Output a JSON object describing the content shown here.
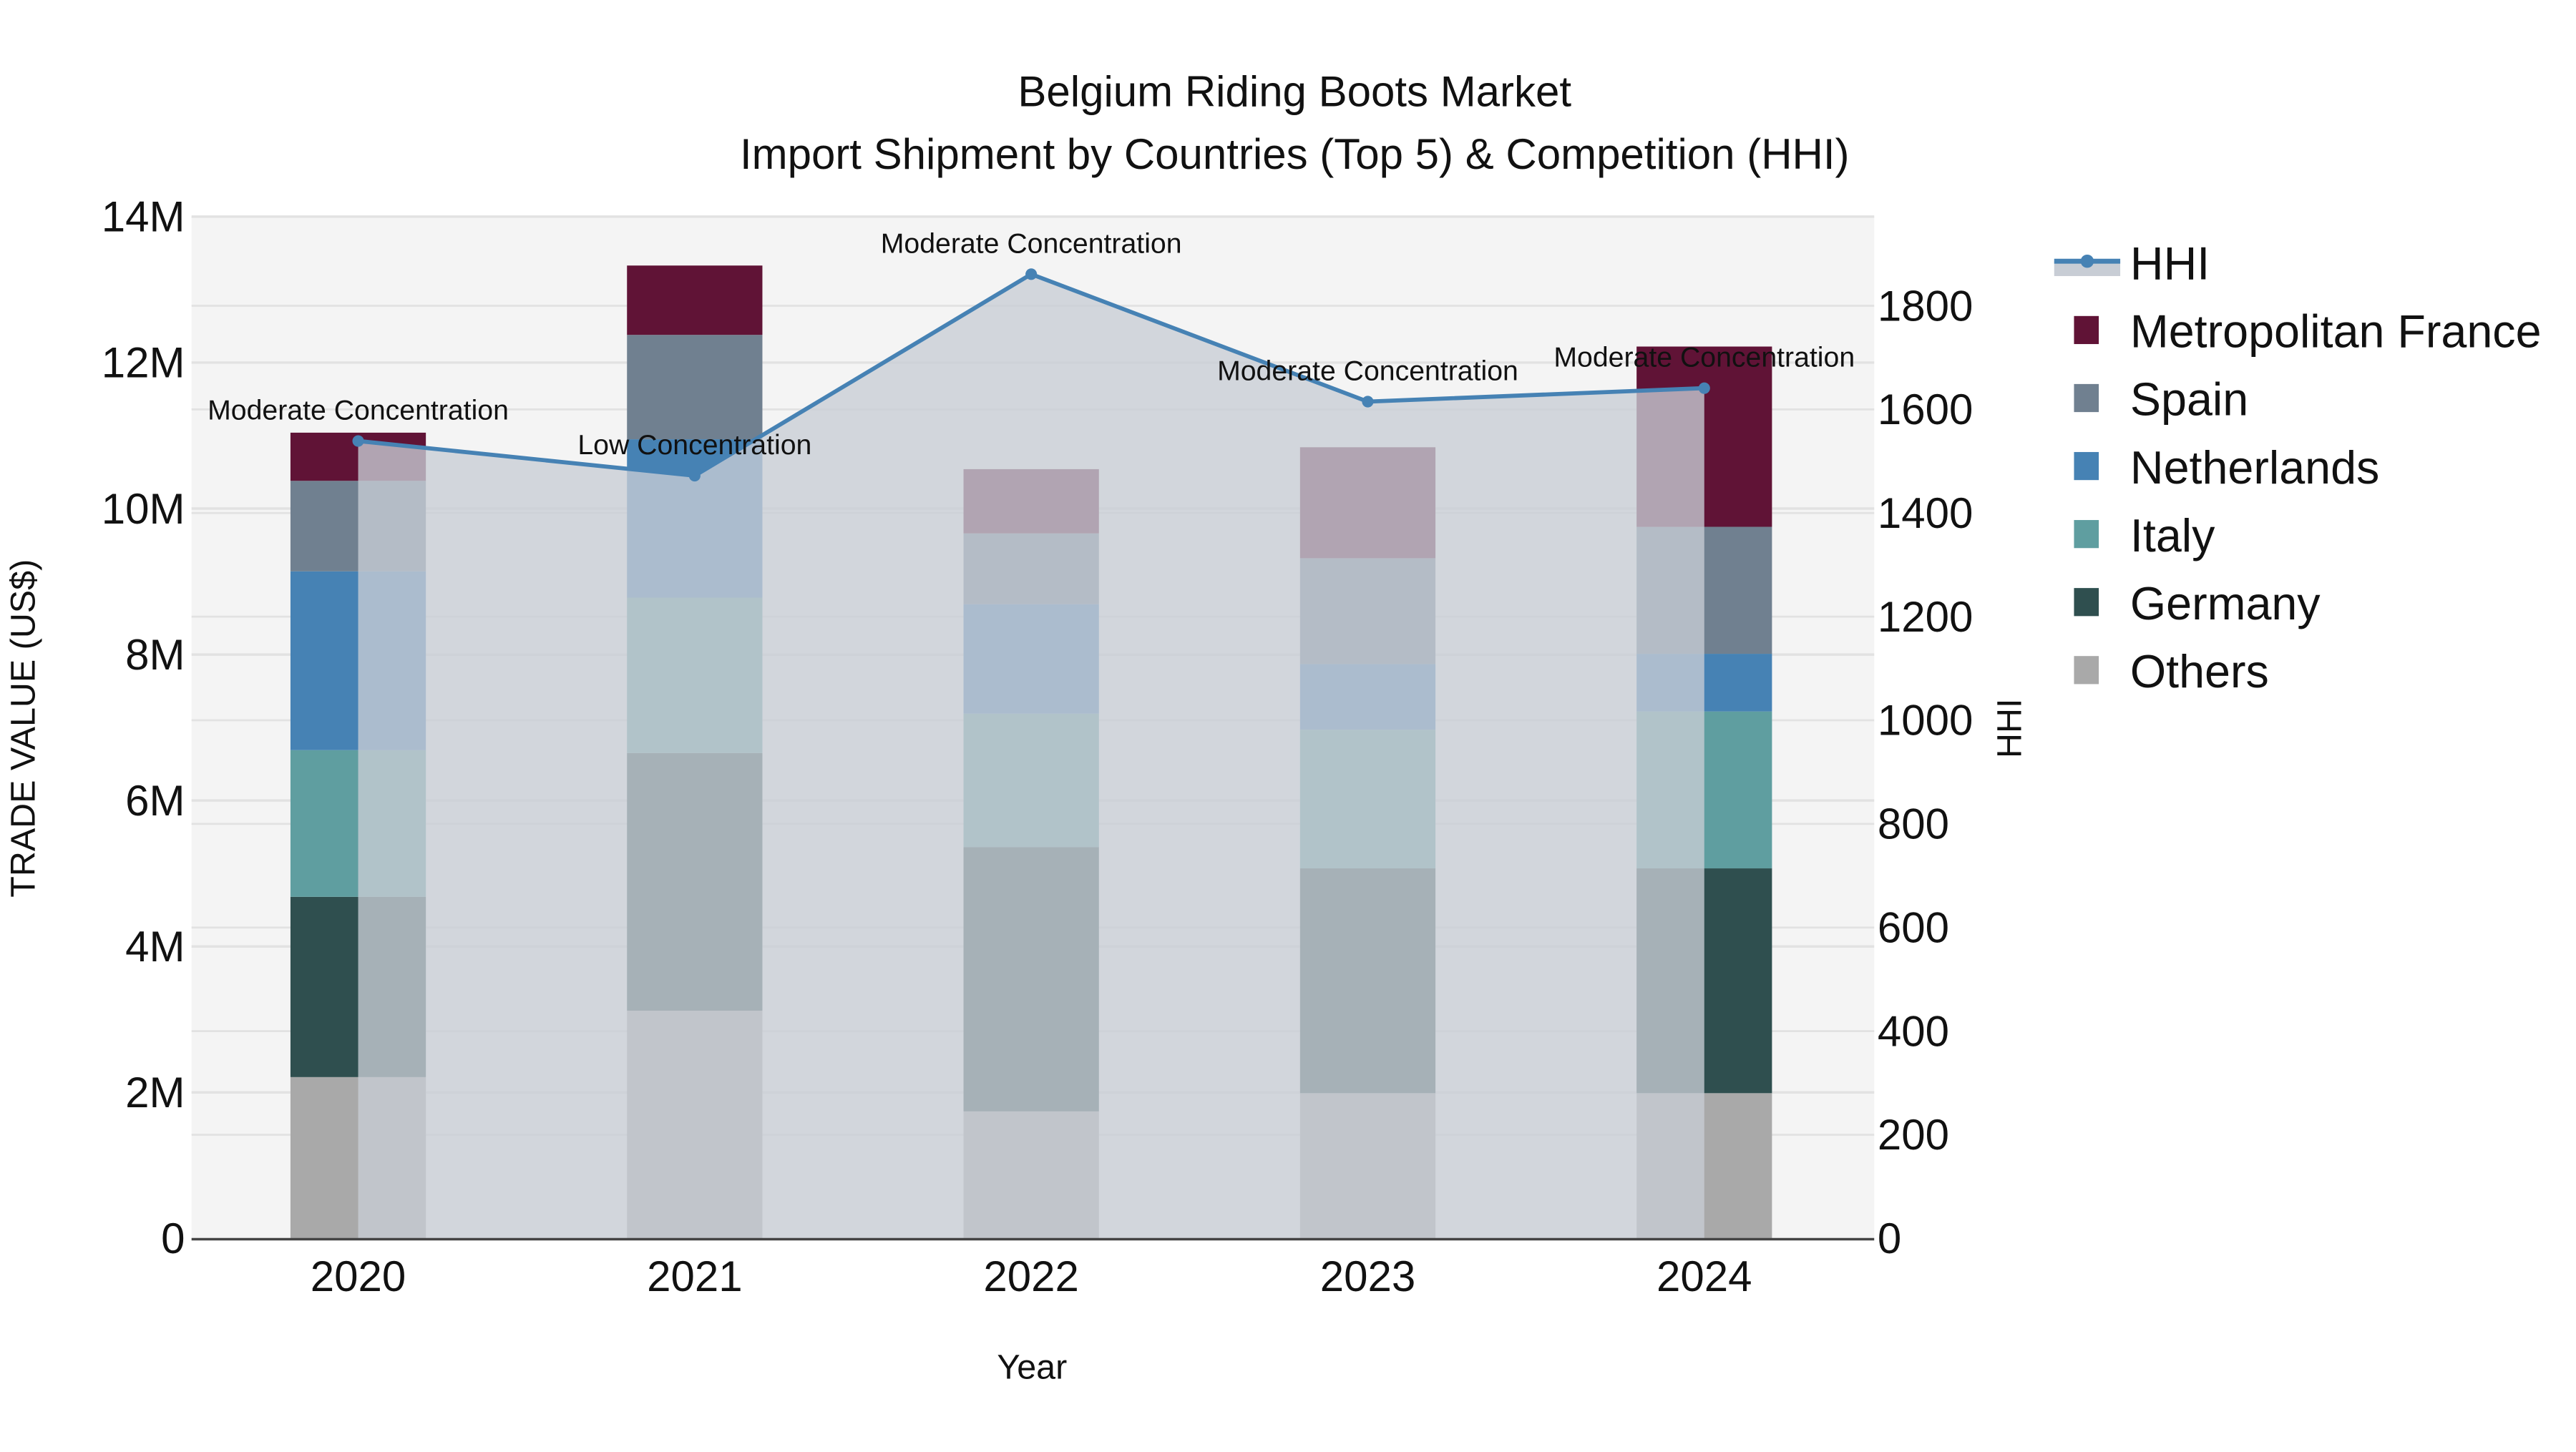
{
  "chart_data": {
    "type": "bar",
    "stacked": true,
    "title": "Belgium Riding Boots Market",
    "subtitle": "Import Shipment by Countries (Top 5) & Competition (HHI)",
    "xlabel": "Year",
    "ylabel": "TRADE VALUE (US$)",
    "y2label": "HHI",
    "categories": [
      "2020",
      "2021",
      "2022",
      "2023",
      "2024"
    ],
    "ylim": [
      0,
      14000000
    ],
    "yticks": [
      0,
      2000000,
      4000000,
      6000000,
      8000000,
      10000000,
      12000000,
      14000000
    ],
    "ytick_labels": [
      "0",
      "2M",
      "4M",
      "6M",
      "8M",
      "10M",
      "12M",
      "14M"
    ],
    "y2lim": [
      0,
      1975
    ],
    "y2ticks": [
      0,
      200,
      400,
      600,
      800,
      1000,
      1200,
      1400,
      1600,
      1800
    ],
    "y2tick_labels": [
      "0",
      "200",
      "400",
      "600",
      "800",
      "1000",
      "1200",
      "1400",
      "1600",
      "1800"
    ],
    "series": [
      {
        "name": "Others",
        "color": "#a9a9a9",
        "values": [
          2210000,
          3120000,
          1740000,
          1990000,
          1990000
        ]
      },
      {
        "name": "Germany",
        "color": "#2f4f4f",
        "values": [
          2470000,
          3530000,
          3620000,
          3080000,
          3080000
        ]
      },
      {
        "name": "Italy",
        "color": "#5f9ea0",
        "values": [
          2010000,
          2130000,
          1830000,
          1900000,
          2150000
        ]
      },
      {
        "name": "Netherlands",
        "color": "#4682b4",
        "values": [
          2450000,
          2170000,
          1500000,
          900000,
          790000
        ]
      },
      {
        "name": "Spain",
        "color": "#708090",
        "values": [
          1240000,
          1430000,
          970000,
          1450000,
          1740000
        ]
      },
      {
        "name": "Metropolitan France",
        "color": "#601336",
        "values": [
          660000,
          950000,
          880000,
          1520000,
          2470000
        ]
      }
    ],
    "line_series": {
      "name": "HHI",
      "axis": "y2",
      "color": "#4682b4",
      "fill_color": "#c8cdd5",
      "values": [
        1539,
        1472,
        1861,
        1615,
        1641
      ],
      "annotations": [
        "Moderate Concentration",
        "Low Concentration",
        "Moderate Concentration",
        "Moderate Concentration",
        "Moderate Concentration"
      ]
    },
    "legend": {
      "position": "right",
      "entries": [
        "HHI",
        "Metropolitan France",
        "Spain",
        "Netherlands",
        "Italy",
        "Germany",
        "Others"
      ]
    },
    "grid": true,
    "plot_bgcolor": "#f4f4f4"
  }
}
